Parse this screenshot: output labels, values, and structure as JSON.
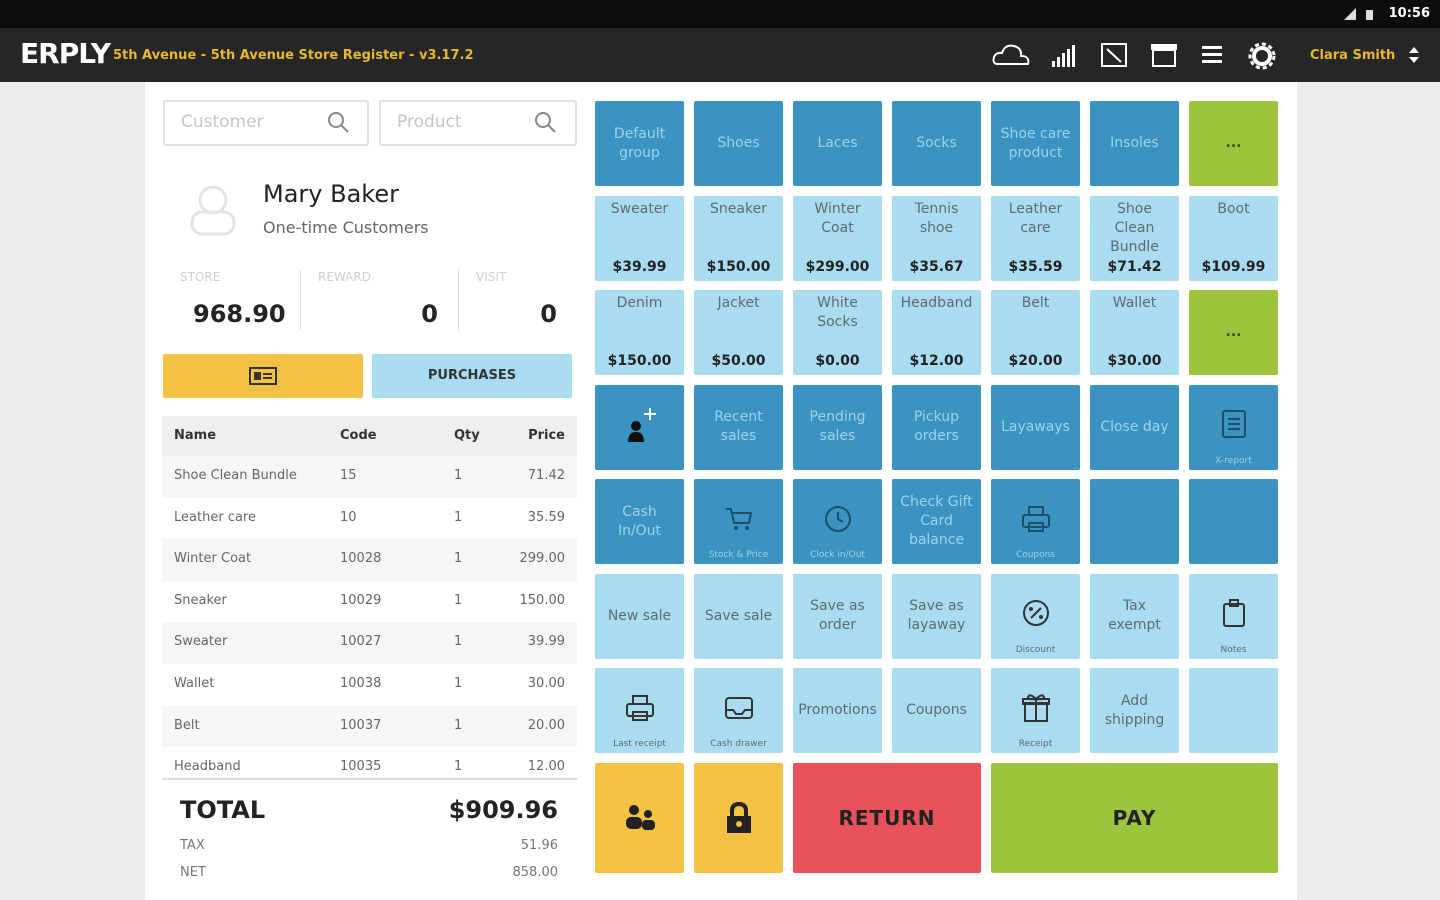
{
  "status_bar": {
    "time": "10:56"
  },
  "header": {
    "logo": "ERPLY",
    "store": "5th Avenue - 5th Avenue Store Register - v3.17.2",
    "user": "Clara Smith"
  },
  "search": {
    "customer": "Customer",
    "product": "Product"
  },
  "customer": {
    "name": "Mary Baker",
    "group": "One-time Customers",
    "stats": [
      {
        "label": "STORE",
        "value": "968.90"
      },
      {
        "label": "REWARD",
        "value": "0"
      },
      {
        "label": "VISIT",
        "value": "0"
      }
    ]
  },
  "purchases_button": "PURCHASES",
  "table": {
    "columns": [
      "Name",
      "Code",
      "Qty",
      "Price"
    ],
    "rows": [
      [
        "Shoe Clean Bundle",
        "15",
        "1",
        "71.42"
      ],
      [
        "Leather care",
        "10",
        "1",
        "35.59"
      ],
      [
        "Winter Coat",
        "10028",
        "1",
        "299.00"
      ],
      [
        "Sneaker",
        "10029",
        "1",
        "150.00"
      ],
      [
        "Sweater",
        "10027",
        "1",
        "39.99"
      ],
      [
        "Wallet",
        "10038",
        "1",
        "30.00"
      ],
      [
        "Belt",
        "10037",
        "1",
        "20.00"
      ],
      [
        "Headband",
        "10035",
        "1",
        "12.00"
      ]
    ]
  },
  "totals": {
    "total_label": "TOTAL",
    "total": "$909.96",
    "tax_label": "TAX",
    "tax": "51.96",
    "net_label": "NET",
    "net": "858.00"
  },
  "tiles": [
    [
      {
        "label": "Default group"
      },
      {
        "label": "Shoes"
      },
      {
        "label": "Laces"
      },
      {
        "label": "Socks"
      },
      {
        "label": "Shoe care product"
      },
      {
        "label": "Insoles"
      },
      {
        "label": "..."
      }
    ],
    [
      {
        "label": "Sweater",
        "price": "$39.99"
      },
      {
        "label": "Sneaker",
        "price": "$150.00"
      },
      {
        "label": "Winter Coat",
        "price": "$299.00"
      },
      {
        "label": "Tennis shoe",
        "price": "$35.67"
      },
      {
        "label": "Leather care",
        "price": "$35.59"
      },
      {
        "label": "Shoe Clean Bundle",
        "price": "$71.42"
      },
      {
        "label": "Boot",
        "price": "$109.99"
      }
    ],
    [
      {
        "label": "Denim",
        "price": "$150.00"
      },
      {
        "label": "Jacket",
        "price": "$50.00"
      },
      {
        "label": "White Socks",
        "price": "$0.00"
      },
      {
        "label": "Headband",
        "price": "$12.00"
      },
      {
        "label": "Belt",
        "price": "$20.00"
      },
      {
        "label": "Wallet",
        "price": "$30.00"
      },
      {
        "label": "..."
      }
    ],
    [
      null,
      {
        "label": "Recent sales"
      },
      {
        "label": "Pending sales"
      },
      {
        "label": "Pickup orders"
      },
      {
        "label": "Layaways"
      },
      {
        "label": "Close day"
      },
      {
        "label": "X-report"
      }
    ],
    [
      {
        "label": "Cash In/Out"
      },
      {
        "label": "Stock & Price"
      },
      {
        "label": "Clock in/Out"
      },
      {
        "label": "Check Gift Card balance"
      },
      {
        "label": "Coupons"
      },
      null,
      null
    ],
    [
      {
        "label": "New sale"
      },
      {
        "label": "Save sale"
      },
      {
        "label": "Save as order"
      },
      {
        "label": "Save as layaway"
      },
      {
        "label": "Discount"
      },
      {
        "label": "Tax exempt"
      },
      {
        "label": "Notes"
      }
    ],
    [
      {
        "label": "Last receipt"
      },
      {
        "label": "Cash drawer"
      },
      {
        "label": "Promotions"
      },
      {
        "label": "Coupons"
      },
      {
        "label": "Receipt"
      },
      {
        "label": "Add shipping"
      },
      null
    ]
  ],
  "actions": {
    "return": "RETURN",
    "pay": "PAY"
  }
}
